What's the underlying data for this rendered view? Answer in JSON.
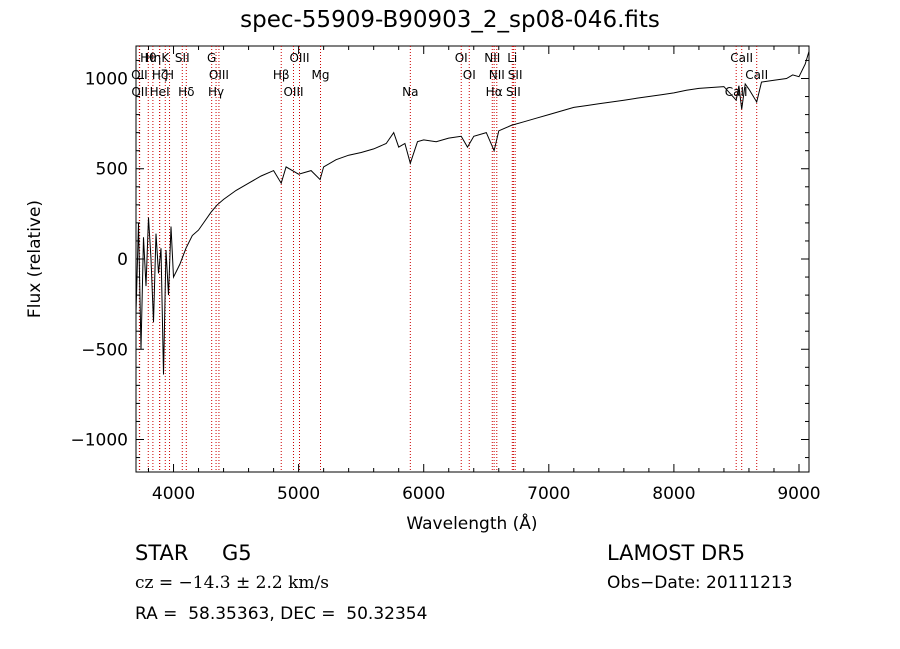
{
  "header": {
    "title": "spec-55909-B90903_2_sp08-046.fits"
  },
  "chart_data": {
    "type": "line",
    "title": "spec-55909-B90903_2_sp08-046.fits",
    "xlabel": "Wavelength (Å)",
    "ylabel": "Flux (relative)",
    "xlim": [
      3700,
      9080
    ],
    "ylim": [
      -1180,
      1180
    ],
    "xticks": [
      "4000",
      "5000",
      "6000",
      "7000",
      "8000",
      "9000"
    ],
    "xtick_values": [
      4000,
      5000,
      6000,
      7000,
      8000,
      9000
    ],
    "yticks": [
      "−1000",
      "−500",
      "0",
      "500",
      "1000"
    ],
    "ytick_values": [
      -1000,
      -500,
      0,
      500,
      1000
    ],
    "grid": false,
    "line_color": "#000000",
    "marker_color": "#cc0000",
    "series": [
      {
        "x": [
          3700,
          3720,
          3740,
          3760,
          3780,
          3800,
          3820,
          3840,
          3860,
          3880,
          3900,
          3920,
          3940,
          3960,
          3980,
          4000,
          4050,
          4100,
          4150,
          4200,
          4250,
          4300,
          4350,
          4400,
          4500,
          4600,
          4700,
          4800,
          4861,
          4900,
          5000,
          5100,
          5172,
          5200,
          5300,
          5400,
          5500,
          5600,
          5700,
          5760,
          5800,
          5850,
          5893,
          5950,
          6000,
          6100,
          6200,
          6300,
          6350,
          6400,
          6500,
          6563,
          6600,
          6700,
          6800,
          6900,
          7000,
          7100,
          7200,
          7300,
          7400,
          7500,
          7600,
          7700,
          7800,
          7900,
          8000,
          8100,
          8200,
          8300,
          8400,
          8498,
          8520,
          8542,
          8570,
          8600,
          8662,
          8700,
          8800,
          8900,
          8950,
          9000,
          9050,
          9080
        ],
        "y": [
          -300,
          200,
          -500,
          120,
          -150,
          230,
          0,
          -350,
          140,
          -80,
          60,
          -640,
          50,
          -200,
          180,
          -100,
          -30,
          60,
          130,
          160,
          210,
          260,
          300,
          330,
          380,
          420,
          460,
          490,
          420,
          510,
          470,
          490,
          440,
          510,
          550,
          575,
          590,
          610,
          640,
          700,
          620,
          640,
          530,
          650,
          660,
          650,
          670,
          680,
          620,
          680,
          700,
          600,
          710,
          740,
          760,
          780,
          800,
          820,
          840,
          850,
          860,
          870,
          880,
          890,
          900,
          910,
          920,
          935,
          945,
          950,
          955,
          880,
          960,
          830,
          970,
          940,
          870,
          980,
          990,
          1000,
          1020,
          1010,
          1080,
          1150
        ]
      }
    ],
    "line_markers": [
      {
        "label": "Hθ",
        "x": 3798
      },
      {
        "label": "OII",
        "x": 3727
      },
      {
        "label": "OII",
        "x": 3729
      },
      {
        "label": "Hη",
        "x": 3835
      },
      {
        "label": "Hζ",
        "x": 3889
      },
      {
        "label": "HeI",
        "x": 3889
      },
      {
        "label": "K",
        "x": 3934
      },
      {
        "label": "H",
        "x": 3968
      },
      {
        "label": "Hδ",
        "x": 4102
      },
      {
        "label": "SII",
        "x": 4070
      },
      {
        "label": "OIII",
        "x": 4363
      },
      {
        "label": "Hγ",
        "x": 4340
      },
      {
        "label": "G",
        "x": 4305
      },
      {
        "label": "Hβ",
        "x": 4861
      },
      {
        "label": "OIII",
        "x": 4959
      },
      {
        "label": "OIII",
        "x": 5007
      },
      {
        "label": "Mg",
        "x": 5175
      },
      {
        "label": "Na",
        "x": 5893
      },
      {
        "label": "OI",
        "x": 6300
      },
      {
        "label": "OI",
        "x": 6364
      },
      {
        "label": "Hα",
        "x": 6563
      },
      {
        "label": "NII",
        "x": 6548
      },
      {
        "label": "NII",
        "x": 6584
      },
      {
        "label": "SII",
        "x": 6717
      },
      {
        "label": "Li",
        "x": 6708
      },
      {
        "label": "SII",
        "x": 6731
      },
      {
        "label": "CaII",
        "x": 8498
      },
      {
        "label": "CaII",
        "x": 8542
      },
      {
        "label": "CaII",
        "x": 8662
      }
    ]
  },
  "info": {
    "class": "STAR",
    "subclass": "G5",
    "survey": "LAMOST DR5",
    "cz": "cz = −14.3 ± 2.2 km/s",
    "obs_date": "Obs−Date: 20111213",
    "coords": "RA =  58.35363, DEC =  50.32354"
  }
}
